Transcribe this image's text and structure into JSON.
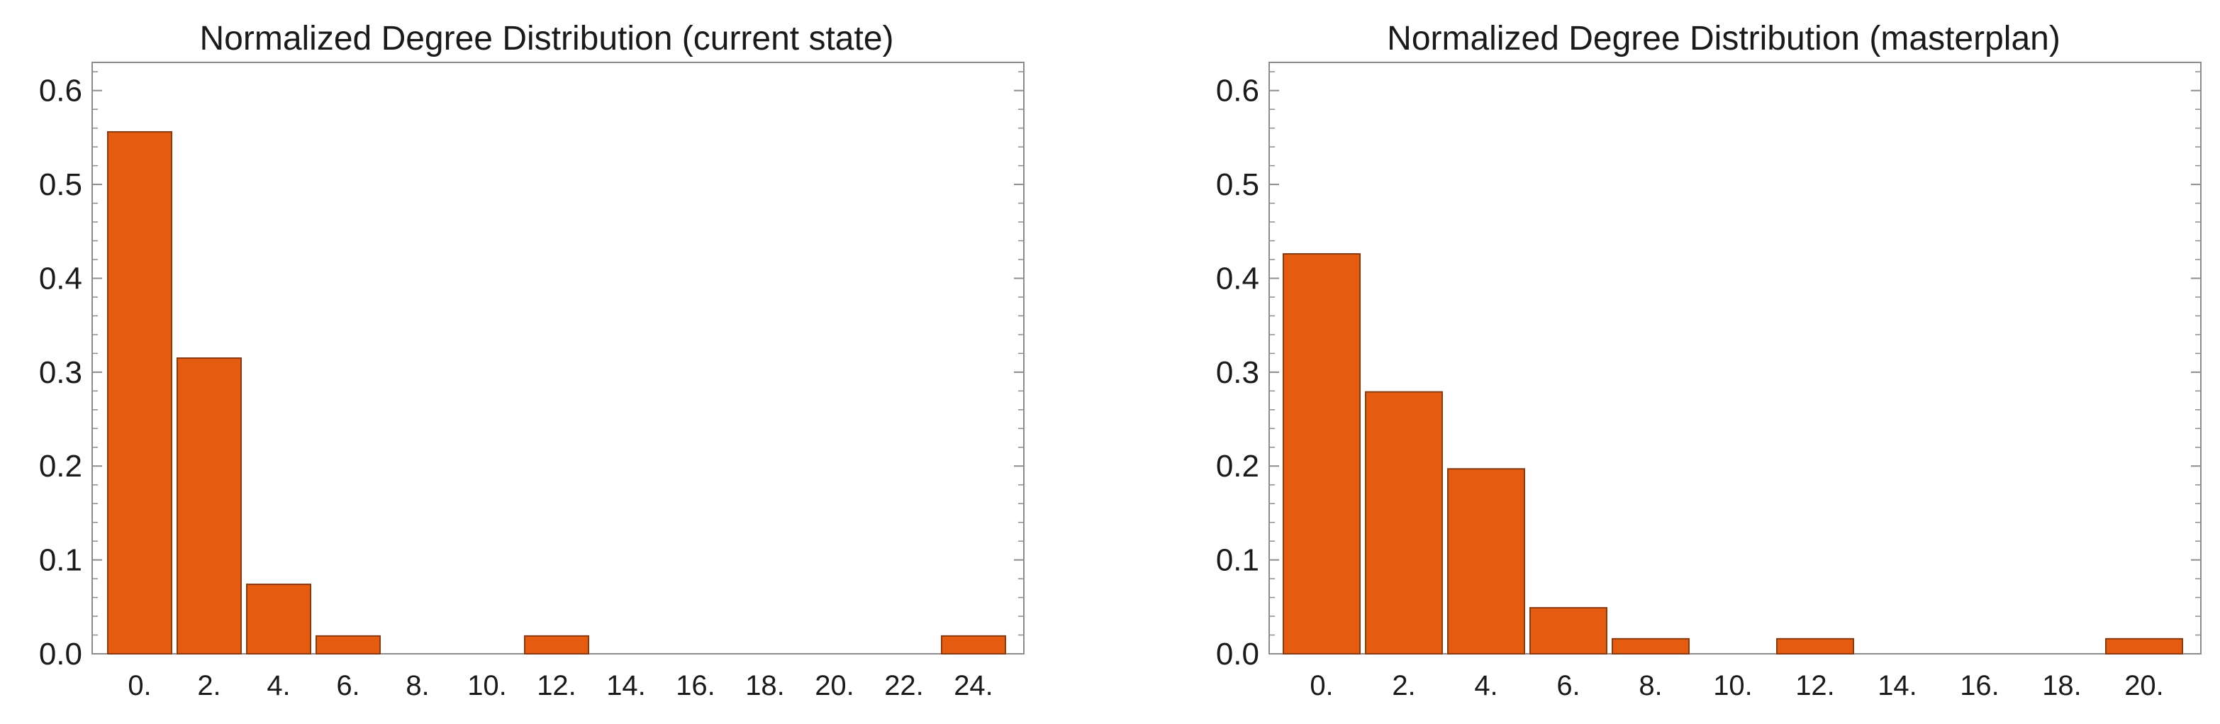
{
  "chart_data": [
    {
      "type": "bar",
      "title": "Normalized Degree Distribution (current state)",
      "xlabel": "",
      "ylabel": "",
      "categories": [
        "0.",
        "2.",
        "4.",
        "6.",
        "8.",
        "10.",
        "12.",
        "14.",
        "16.",
        "18.",
        "20.",
        "22.",
        "24."
      ],
      "values": [
        0.556,
        0.315,
        0.074,
        0.019,
        0.0,
        0.0,
        0.019,
        0.0,
        0.0,
        0.0,
        0.0,
        0.0,
        0.019
      ],
      "ylim": [
        0,
        0.63
      ],
      "yticks": [
        "0.0",
        "0.1",
        "0.2",
        "0.3",
        "0.4",
        "0.5",
        "0.6"
      ],
      "bar_color": "#e55c10",
      "bar_edge_color": "#8a3a10",
      "frame_color": "#8c8c8c"
    },
    {
      "type": "bar",
      "title": "Normalized Degree Distribution (masterplan)",
      "xlabel": "",
      "ylabel": "",
      "categories": [
        "0.",
        "2.",
        "4.",
        "6.",
        "8.",
        "10.",
        "12.",
        "14.",
        "16.",
        "18.",
        "20."
      ],
      "values": [
        0.426,
        0.279,
        0.197,
        0.049,
        0.016,
        0.0,
        0.016,
        0.0,
        0.0,
        0.0,
        0.016
      ],
      "ylim": [
        0,
        0.63
      ],
      "yticks": [
        "0.0",
        "0.1",
        "0.2",
        "0.3",
        "0.4",
        "0.5",
        "0.6"
      ],
      "bar_color": "#e55c10",
      "bar_edge_color": "#8a3a10",
      "frame_color": "#8c8c8c"
    }
  ]
}
